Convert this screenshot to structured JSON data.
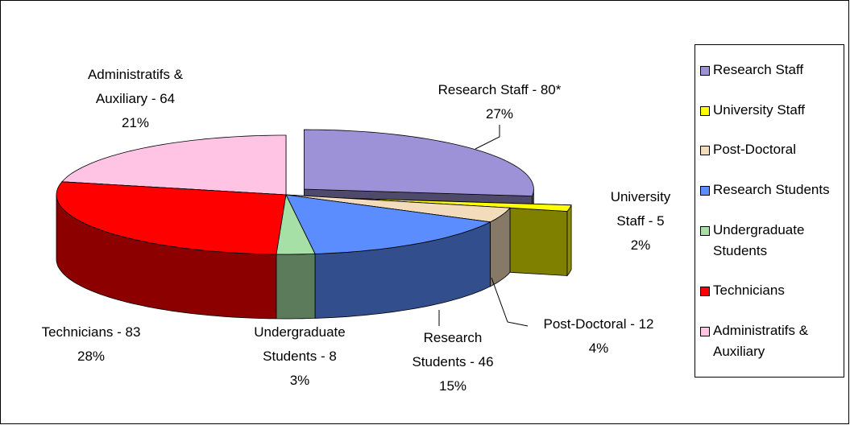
{
  "chart_data": {
    "type": "pie",
    "categories": [
      "Research Staff",
      "University Staff",
      "Post-Doctoral",
      "Research Students",
      "Undergraduate Students",
      "Technicians",
      "Administratifs & Auxiliary"
    ],
    "values": [
      80,
      5,
      12,
      46,
      8,
      83,
      64
    ],
    "value_labels": [
      "Research Staff - 80*",
      "University Staff - 5",
      "Post-Doctoral - 12",
      "Research Students - 46",
      "Undergraduate Students - 8",
      "Technicians - 83",
      "Administratifs & Auxiliary - 64"
    ],
    "percents": [
      27,
      2,
      4,
      15,
      3,
      28,
      21
    ],
    "percent_labels": [
      "27%",
      "2%",
      "4%",
      "15%",
      "3%",
      "28%",
      "21%"
    ],
    "colors": [
      "#9d92d8",
      "#ffff00",
      "#f3dcbc",
      "#5b8dff",
      "#a6e0a6",
      "#ff0000",
      "#ffc4e4"
    ],
    "legend": "right"
  }
}
